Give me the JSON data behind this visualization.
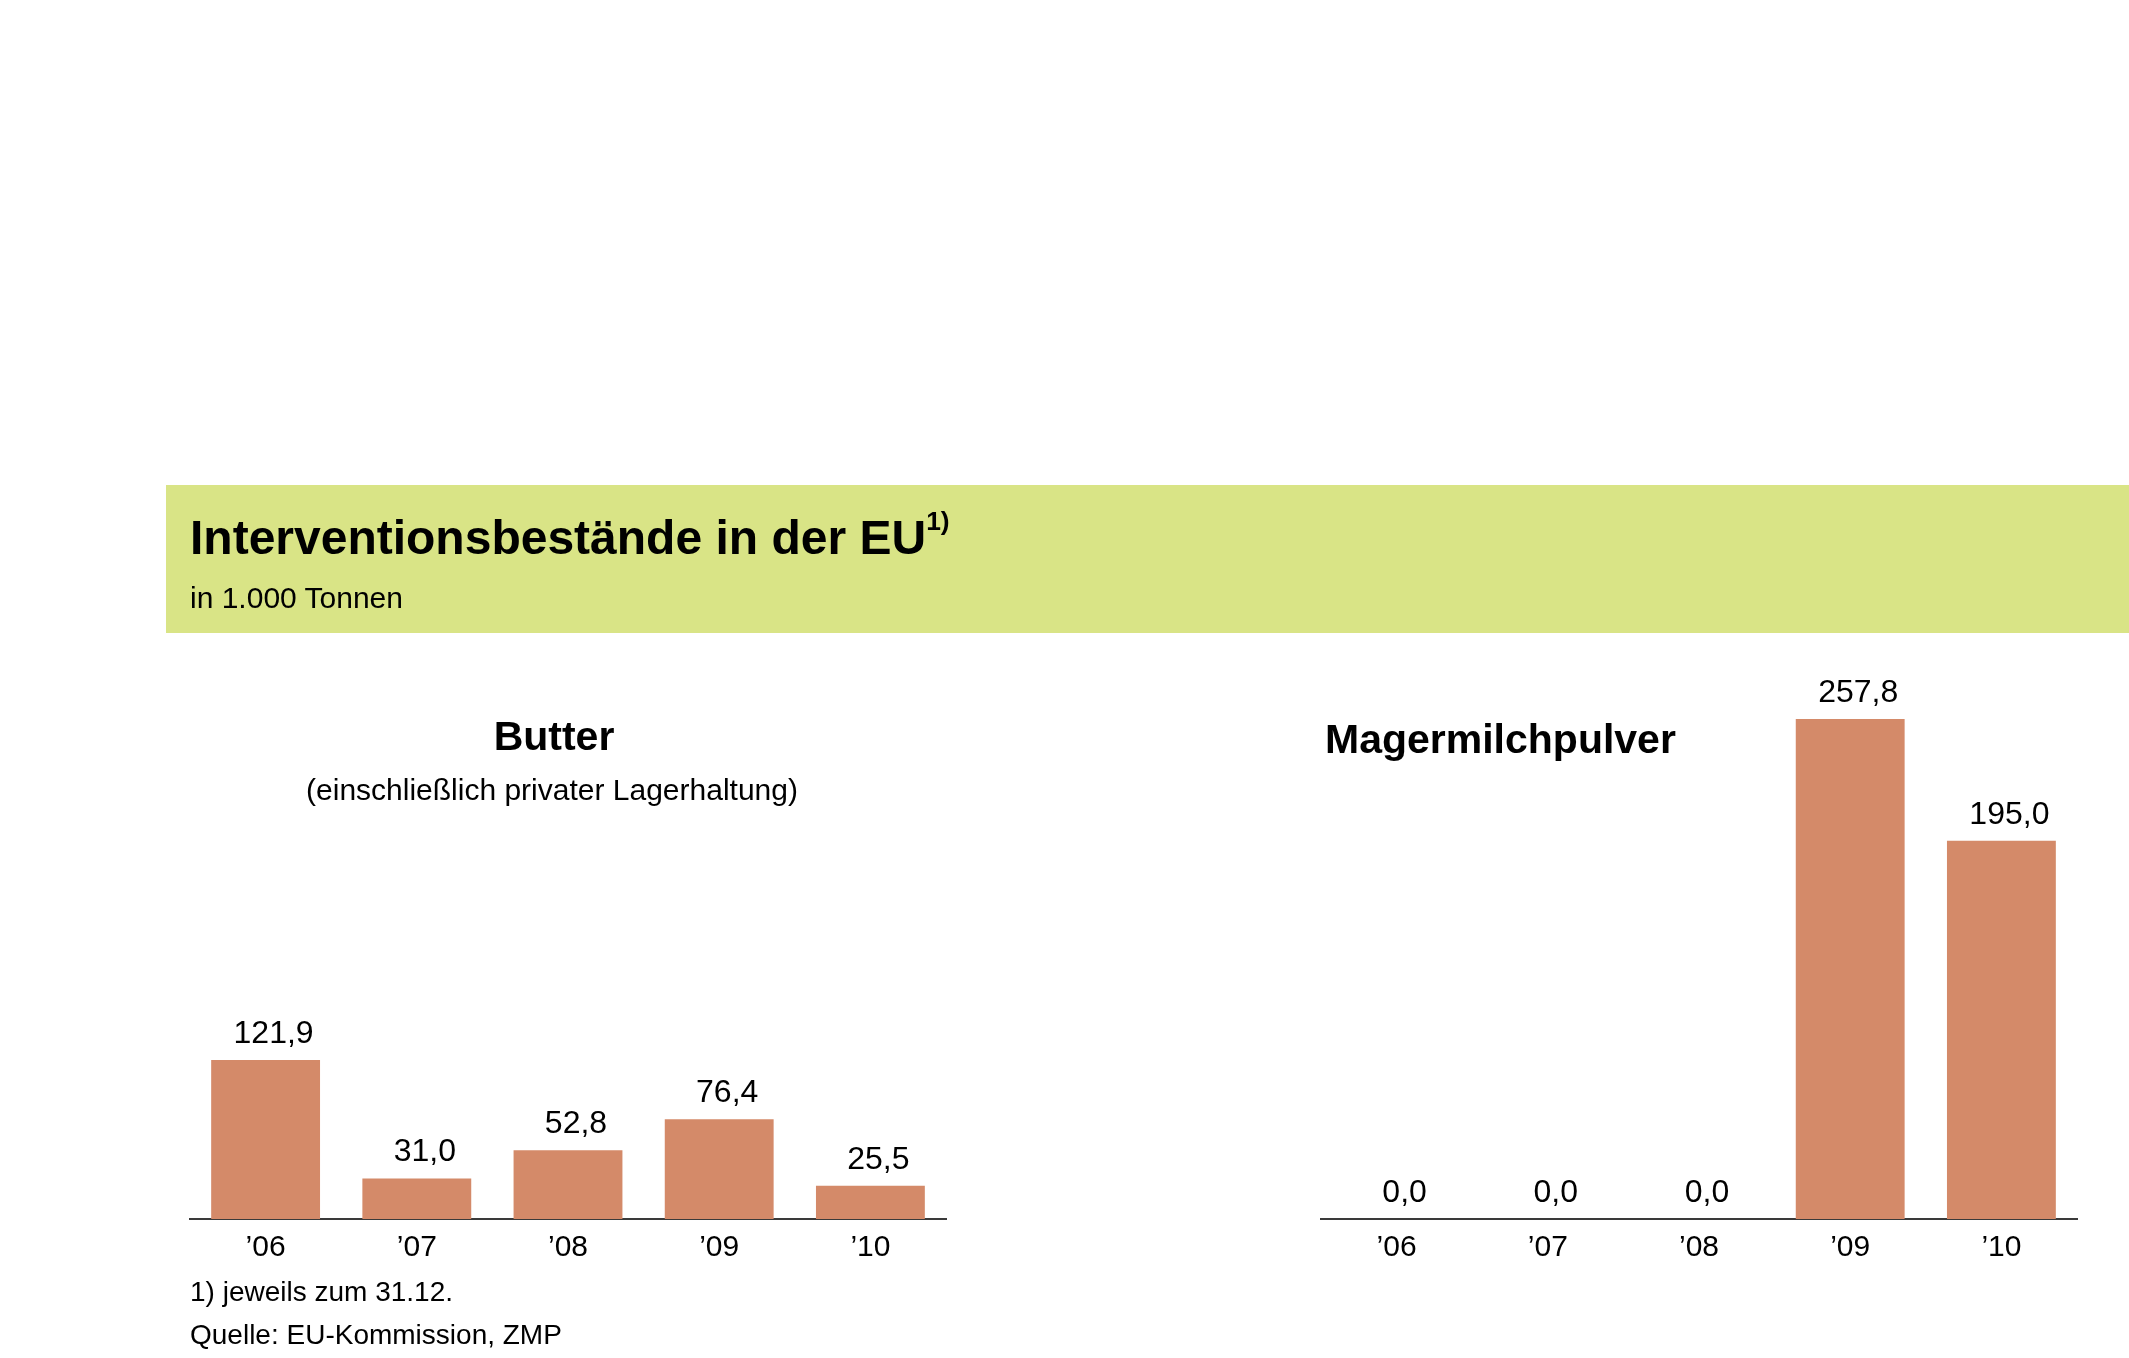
{
  "chart_data": [
    {
      "type": "other",
      "title": "Interventionsbestände in der EU$^{1)}$",
      "subtitle": "in 1.000 Tonnen"
    },
    {
      "type": "bar",
      "title": "Butter",
      "subtitle": "(einschließlich privater Lagerhaltung)",
      "categories": [
        "’06",
        "’07",
        "’08",
        "’09",
        "’10"
      ],
      "values": [
        121.9,
        31.0,
        52.8,
        76.4,
        25.5
      ],
      "value_labels": [
        "121,9",
        "31,0",
        "52,8",
        "76,4",
        "25,5"
      ],
      "color": "#d48a69",
      "tick_labels": "x",
      "annotations": [
        "1) jeweils zum 31.12.",
        "Quelle: EU-Kommission, ZMP"
      ]
    },
    {
      "type": "bar",
      "title": "Magermilchpulver",
      "categories": [
        "’06",
        "’07",
        "’08",
        "’09",
        "’10"
      ],
      "values": [
        0.0,
        0.0,
        0.0,
        257.8,
        195.0
      ],
      "value_labels": [
        "0,0",
        "0,0",
        "0,0",
        "257,8",
        "195,0"
      ],
      "color": "#d48a69",
      "tick_labels": "x"
    }
  ]
}
